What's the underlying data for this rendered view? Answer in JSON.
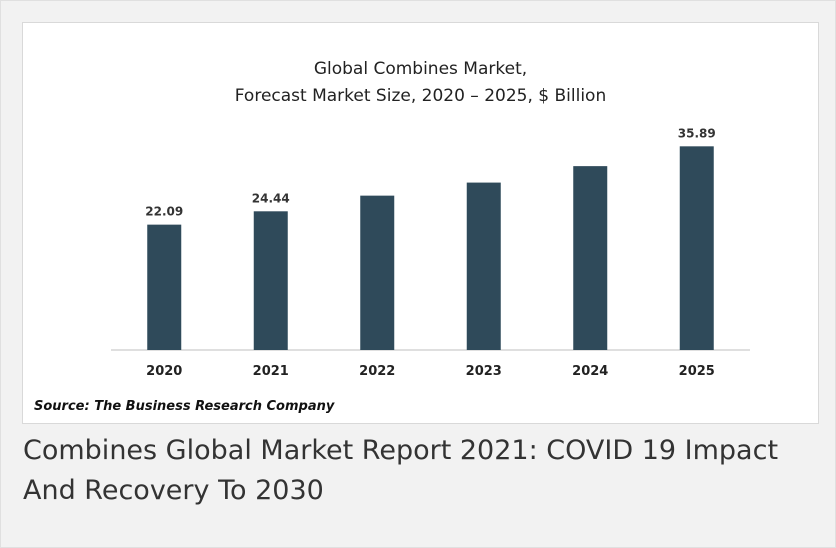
{
  "caption": "Combines Global Market Report 2021: COVID 19 Impact And Recovery To 2030",
  "colors": {
    "bar": "#2f4a5a",
    "axis": "#bfbfbf",
    "label": "#333333"
  },
  "chart_data": {
    "type": "bar",
    "title_lines": [
      "Global Combines Market,",
      "Forecast Market Size, 2020 – 2025, $ Billion"
    ],
    "categories": [
      "2020",
      "2021",
      "2022",
      "2023",
      "2024",
      "2025"
    ],
    "values": [
      22.09,
      24.44,
      27.2,
      29.5,
      32.4,
      35.89
    ],
    "data_labels": [
      "22.09",
      "24.44",
      "",
      "",
      "",
      "35.89"
    ],
    "ylim": [
      0,
      40
    ],
    "grid": false,
    "legend": "none",
    "source": "Source: The Business Research Company"
  }
}
